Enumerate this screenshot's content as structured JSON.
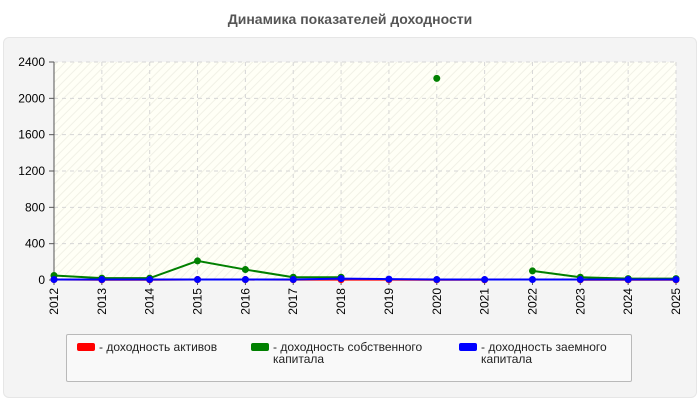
{
  "chart_data": {
    "type": "line",
    "title": "Динамика показателей доходности",
    "xlabel": "",
    "ylabel": "",
    "categories": [
      "2012",
      "2013",
      "2014",
      "2015",
      "2016",
      "2017",
      "2018",
      "2019",
      "2020",
      "2021",
      "2022",
      "2023",
      "2024",
      "2025"
    ],
    "ylim": [
      0,
      2400
    ],
    "yticks": [
      "0",
      "400",
      "800",
      "1200",
      "1600",
      "2000",
      "2400"
    ],
    "grid": true,
    "legend_position": "bottom",
    "series": [
      {
        "name": "- доходность активов",
        "color": "#ff0000",
        "values": [
          5,
          3,
          3,
          5,
          5,
          4,
          4,
          4,
          3,
          3,
          null,
          3,
          3,
          3
        ]
      },
      {
        "name": "- доходность собственного капитала",
        "color": "#008000",
        "values": [
          50,
          20,
          20,
          210,
          115,
          30,
          30,
          null,
          2220,
          null,
          100,
          30,
          15,
          15
        ]
      },
      {
        "name": "- доходность заемного капитала",
        "color": "#0000ff",
        "values": [
          5,
          5,
          5,
          5,
          5,
          5,
          15,
          10,
          5,
          5,
          5,
          5,
          5,
          5
        ]
      }
    ]
  }
}
